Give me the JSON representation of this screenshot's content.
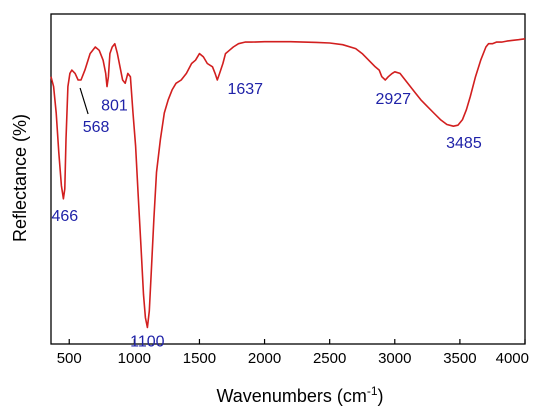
{
  "chart_data": {
    "type": "line",
    "title": "",
    "xlabel": "Wavenumbers (cm",
    "xlabel_sup": "-1",
    "xlabel_close": ")",
    "ylabel": "Reflectance (%)",
    "xlim": [
      360,
      4000
    ],
    "ylim": [
      0,
      100
    ],
    "y_ticks_labeled": false,
    "grid": false,
    "x_ticks": [
      {
        "value": 500,
        "label": "500"
      },
      {
        "value": 1000,
        "label": "1000"
      },
      {
        "value": 1500,
        "label": "1500"
      },
      {
        "value": 2000,
        "label": "2000"
      },
      {
        "value": 2500,
        "label": "2500"
      },
      {
        "value": 3000,
        "label": "3000"
      },
      {
        "value": 3500,
        "label": "3500"
      },
      {
        "value": 4000,
        "label": "4000"
      }
    ],
    "series": [
      {
        "color": "#d21f1f",
        "x": [
          360,
          380,
          400,
          420,
          440,
          455,
          466,
          475,
          490,
          505,
          520,
          545,
          568,
          590,
          620,
          660,
          700,
          730,
          760,
          780,
          790,
          801,
          812,
          830,
          850,
          870,
          890,
          910,
          930,
          950,
          970,
          990,
          1010,
          1030,
          1050,
          1070,
          1085,
          1100,
          1115,
          1130,
          1150,
          1170,
          1200,
          1230,
          1260,
          1290,
          1320,
          1360,
          1400,
          1440,
          1470,
          1500,
          1530,
          1560,
          1600,
          1620,
          1637,
          1655,
          1680,
          1700,
          1730,
          1760,
          1800,
          1850,
          1900,
          2000,
          2100,
          2200,
          2300,
          2400,
          2500,
          2600,
          2700,
          2750,
          2800,
          2850,
          2880,
          2900,
          2927,
          2950,
          2980,
          3000,
          3040,
          3080,
          3120,
          3160,
          3200,
          3250,
          3300,
          3350,
          3400,
          3450,
          3485,
          3520,
          3550,
          3580,
          3620,
          3660,
          3700,
          3720,
          3750,
          3780,
          3820,
          3860,
          3900,
          3950,
          4000
        ],
        "values": [
          81,
          78,
          70,
          58,
          48,
          44,
          47,
          62,
          78,
          82,
          83,
          82,
          80,
          80,
          83,
          88,
          90,
          89,
          86,
          82,
          78,
          81,
          88,
          90,
          91,
          88,
          84,
          80,
          79,
          82,
          81,
          70,
          60,
          45,
          30,
          15,
          8,
          5,
          10,
          22,
          38,
          52,
          62,
          70,
          74,
          77,
          79,
          80,
          82,
          85,
          86,
          88,
          87,
          85,
          84,
          82,
          80,
          82,
          85,
          88,
          89,
          90,
          91,
          91.5,
          91.5,
          91.6,
          91.6,
          91.6,
          91.5,
          91.4,
          91.2,
          90.7,
          89.5,
          88,
          86,
          84,
          83,
          81,
          80,
          81,
          82,
          82.5,
          82,
          80,
          78,
          76,
          74,
          72,
          70,
          68,
          66.5,
          66,
          66.3,
          68,
          71,
          75,
          81,
          86,
          90,
          91,
          91,
          91.5,
          91.5,
          91.8,
          92,
          92.2,
          92.5
        ]
      }
    ],
    "annotations": [
      {
        "text": "466",
        "x": 466,
        "y": 44
      },
      {
        "text": "568",
        "x": 568,
        "y": 80
      },
      {
        "text": "801",
        "x": 801,
        "y": 78
      },
      {
        "text": "1100",
        "x": 1100,
        "y": 5
      },
      {
        "text": "1637",
        "x": 1637,
        "y": 80
      },
      {
        "text": "2927",
        "x": 2927,
        "y": 80
      },
      {
        "text": "3485",
        "x": 3485,
        "y": 66
      }
    ]
  }
}
